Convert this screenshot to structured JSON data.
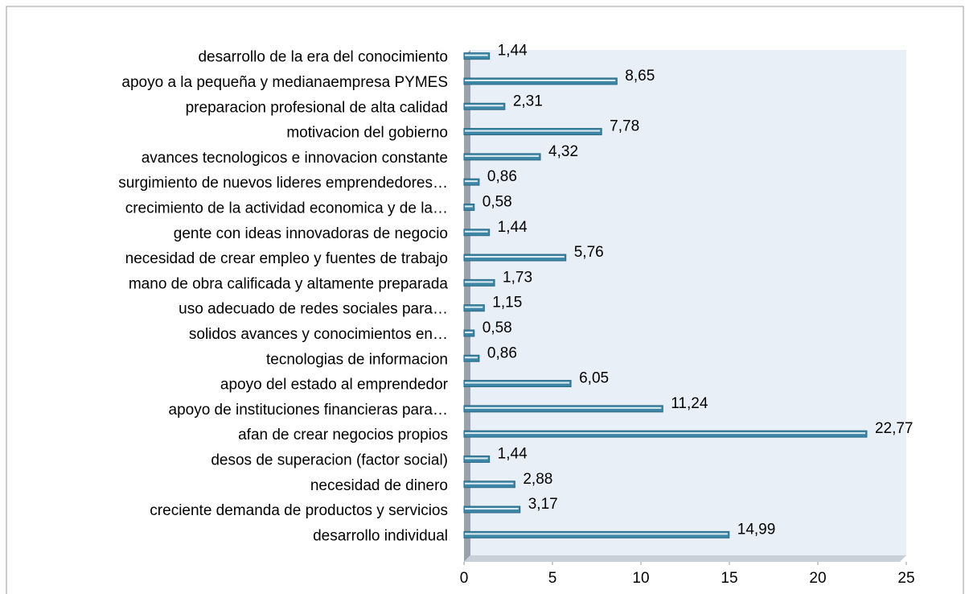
{
  "chart_data": {
    "type": "bar",
    "orientation": "horizontal",
    "categories": [
      "desarrollo de la era del conocimiento",
      "apoyo a la pequeña y medianaempresa PYMES",
      "preparacion profesional de alta calidad",
      "motivacion del gobierno",
      "avances tecnologicos e innovacion constante",
      "surgimiento de nuevos lideres emprendedores…",
      "crecimiento de la actividad economica y de la…",
      "gente con ideas innovadoras de negocio",
      "necesidad de crear empleo y fuentes de trabajo",
      "mano de obra calificada y altamente preparada",
      "uso adecuado de redes sociales para…",
      "solidos avances y conocimientos en…",
      "tecnologias de informacion",
      "apoyo del estado al emprendedor",
      "apoyo de instituciones financieras para…",
      "afan de crear negocios propios",
      "desos de superacion (factor social)",
      "necesidad de dinero",
      "creciente demanda de productos y servicios",
      "desarrollo individual"
    ],
    "values": [
      1.44,
      8.65,
      2.31,
      7.78,
      4.32,
      0.86,
      0.58,
      1.44,
      5.76,
      1.73,
      1.15,
      0.58,
      0.86,
      6.05,
      11.24,
      22.77,
      1.44,
      2.88,
      3.17,
      14.99
    ],
    "value_labels": [
      "1,44",
      "8,65",
      "2,31",
      "7,78",
      "4,32",
      "0,86",
      "0,58",
      "1,44",
      "5,76",
      "1,73",
      "1,15",
      "0,58",
      "0,86",
      "6,05",
      "11,24",
      "22,77",
      "1,44",
      "2,88",
      "3,17",
      "14,99"
    ],
    "color": "#3e86a6",
    "xlim": [
      0,
      25
    ],
    "xticks": [
      0,
      5,
      10,
      15,
      20,
      25
    ]
  }
}
